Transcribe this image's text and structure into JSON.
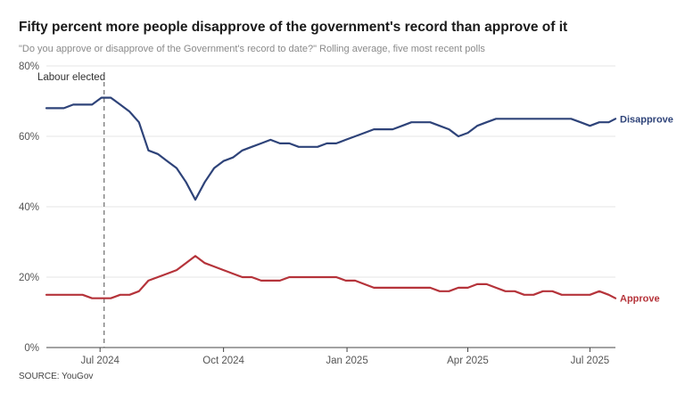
{
  "title": "Fifty percent more people disapprove of the government's record than approve of it",
  "subtitle": "\"Do you approve or disapprove of the Government's record to date?\" Rolling average, five most recent polls",
  "source": "SOURCE: YouGov",
  "colors": {
    "disapprove": "#2e4379",
    "approve": "#b5333a",
    "grid": "#e6e6e6",
    "axis": "#444444",
    "marker": "#777777"
  },
  "chart_data": {
    "type": "line",
    "title": "Fifty percent more people disapprove of the government's record than approve of it",
    "subtitle": "\"Do you approve or disapprove of the Government's record to date?\" Rolling average, five most recent polls",
    "xlabel": "",
    "ylabel": "",
    "x_range": [
      "2024-05-22",
      "2025-07-20"
    ],
    "ylim": [
      0,
      80
    ],
    "yticks": [
      0,
      20,
      40,
      60,
      80
    ],
    "ytick_labels": [
      "0%",
      "20%",
      "40%",
      "60%",
      "80%"
    ],
    "xticks": [
      "2024-07-01",
      "2024-10-01",
      "2025-01-01",
      "2025-04-01",
      "2025-07-01"
    ],
    "xtick_labels": [
      "Jul 2024",
      "Oct 2024",
      "Jan 2025",
      "Apr 2025",
      "Jul 2025"
    ],
    "grid": true,
    "legend": "inline labels at line ends",
    "annotations": [
      {
        "text": "Labour elected",
        "x": "2024-07-04"
      }
    ],
    "series": [
      {
        "name": "Disapprove",
        "x": [
          "2024-05-22",
          "2024-05-29",
          "2024-06-04",
          "2024-06-11",
          "2024-06-18",
          "2024-06-25",
          "2024-07-02",
          "2024-07-09",
          "2024-07-16",
          "2024-07-23",
          "2024-07-30",
          "2024-08-06",
          "2024-08-13",
          "2024-08-20",
          "2024-08-27",
          "2024-09-03",
          "2024-09-10",
          "2024-09-17",
          "2024-09-24",
          "2024-10-01",
          "2024-10-08",
          "2024-10-15",
          "2024-10-22",
          "2024-10-29",
          "2024-11-05",
          "2024-11-12",
          "2024-11-19",
          "2024-11-26",
          "2024-12-03",
          "2024-12-10",
          "2024-12-17",
          "2024-12-24",
          "2024-12-31",
          "2025-01-07",
          "2025-01-14",
          "2025-01-21",
          "2025-01-28",
          "2025-02-04",
          "2025-02-11",
          "2025-02-18",
          "2025-02-25",
          "2025-03-04",
          "2025-03-11",
          "2025-03-18",
          "2025-03-25",
          "2025-04-01",
          "2025-04-08",
          "2025-04-15",
          "2025-04-22",
          "2025-04-29",
          "2025-05-06",
          "2025-05-13",
          "2025-05-20",
          "2025-05-27",
          "2025-06-03",
          "2025-06-10",
          "2025-06-17",
          "2025-06-24",
          "2025-07-01",
          "2025-07-08",
          "2025-07-15",
          "2025-07-20"
        ],
        "values": [
          68,
          68,
          68,
          69,
          69,
          69,
          71,
          71,
          69,
          67,
          64,
          56,
          55,
          53,
          51,
          47,
          42,
          47,
          51,
          53,
          54,
          56,
          57,
          58,
          59,
          58,
          58,
          57,
          57,
          57,
          58,
          58,
          59,
          60,
          61,
          62,
          62,
          62,
          63,
          64,
          64,
          64,
          63,
          62,
          60,
          61,
          63,
          64,
          65,
          65,
          65,
          65,
          65,
          65,
          65,
          65,
          65,
          64,
          63,
          64,
          64,
          65
        ]
      },
      {
        "name": "Approve",
        "x": [
          "2024-05-22",
          "2024-05-29",
          "2024-06-04",
          "2024-06-11",
          "2024-06-18",
          "2024-06-25",
          "2024-07-02",
          "2024-07-09",
          "2024-07-16",
          "2024-07-23",
          "2024-07-30",
          "2024-08-06",
          "2024-08-13",
          "2024-08-20",
          "2024-08-27",
          "2024-09-03",
          "2024-09-10",
          "2024-09-17",
          "2024-09-24",
          "2024-10-01",
          "2024-10-08",
          "2024-10-15",
          "2024-10-22",
          "2024-10-29",
          "2024-11-05",
          "2024-11-12",
          "2024-11-19",
          "2024-11-26",
          "2024-12-03",
          "2024-12-10",
          "2024-12-17",
          "2024-12-24",
          "2024-12-31",
          "2025-01-07",
          "2025-01-14",
          "2025-01-21",
          "2025-01-28",
          "2025-02-04",
          "2025-02-11",
          "2025-02-18",
          "2025-02-25",
          "2025-03-04",
          "2025-03-11",
          "2025-03-18",
          "2025-03-25",
          "2025-04-01",
          "2025-04-08",
          "2025-04-15",
          "2025-04-22",
          "2025-04-29",
          "2025-05-06",
          "2025-05-13",
          "2025-05-20",
          "2025-05-27",
          "2025-06-03",
          "2025-06-10",
          "2025-06-17",
          "2025-06-24",
          "2025-07-01",
          "2025-07-08",
          "2025-07-15",
          "2025-07-20"
        ],
        "values": [
          15,
          15,
          15,
          15,
          15,
          14,
          14,
          14,
          15,
          15,
          16,
          19,
          20,
          21,
          22,
          24,
          26,
          24,
          23,
          22,
          21,
          20,
          20,
          19,
          19,
          19,
          20,
          20,
          20,
          20,
          20,
          20,
          19,
          19,
          18,
          17,
          17,
          17,
          17,
          17,
          17,
          17,
          16,
          16,
          17,
          17,
          18,
          18,
          17,
          16,
          16,
          15,
          15,
          16,
          16,
          15,
          15,
          15,
          15,
          16,
          15,
          14
        ]
      }
    ]
  }
}
